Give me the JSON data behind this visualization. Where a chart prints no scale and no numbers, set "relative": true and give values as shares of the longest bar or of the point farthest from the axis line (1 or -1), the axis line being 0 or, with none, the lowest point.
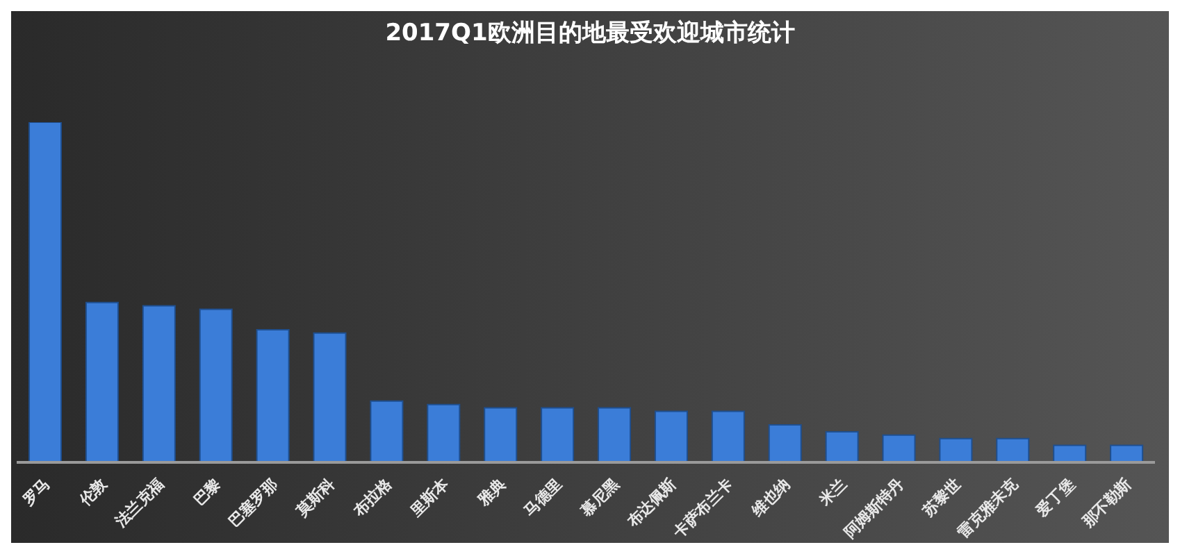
{
  "chart_data": {
    "type": "bar",
    "title": "2017Q1欧洲目的地最受欢迎城市统计",
    "relative": true,
    "categories": [
      "罗马",
      "伦敦",
      "法兰克福",
      "巴黎",
      "巴塞罗那",
      "莫斯科",
      "布拉格",
      "里斯本",
      "雅典",
      "马德里",
      "慕尼黑",
      "布达佩斯",
      "卡萨布兰卡",
      "维也纳",
      "米兰",
      "阿姆斯特丹",
      "苏黎世",
      "雷克雅未克",
      "爱丁堡",
      "那不勒斯"
    ],
    "values": [
      1,
      0.47,
      0.46,
      0.45,
      0.39,
      0.38,
      0.18,
      0.17,
      0.16,
      0.16,
      0.16,
      0.15,
      0.15,
      0.11,
      0.09,
      0.08,
      0.07,
      0.07,
      0.05,
      0.05
    ],
    "color": "#3b7dd8",
    "grid": false,
    "legend": false
  }
}
